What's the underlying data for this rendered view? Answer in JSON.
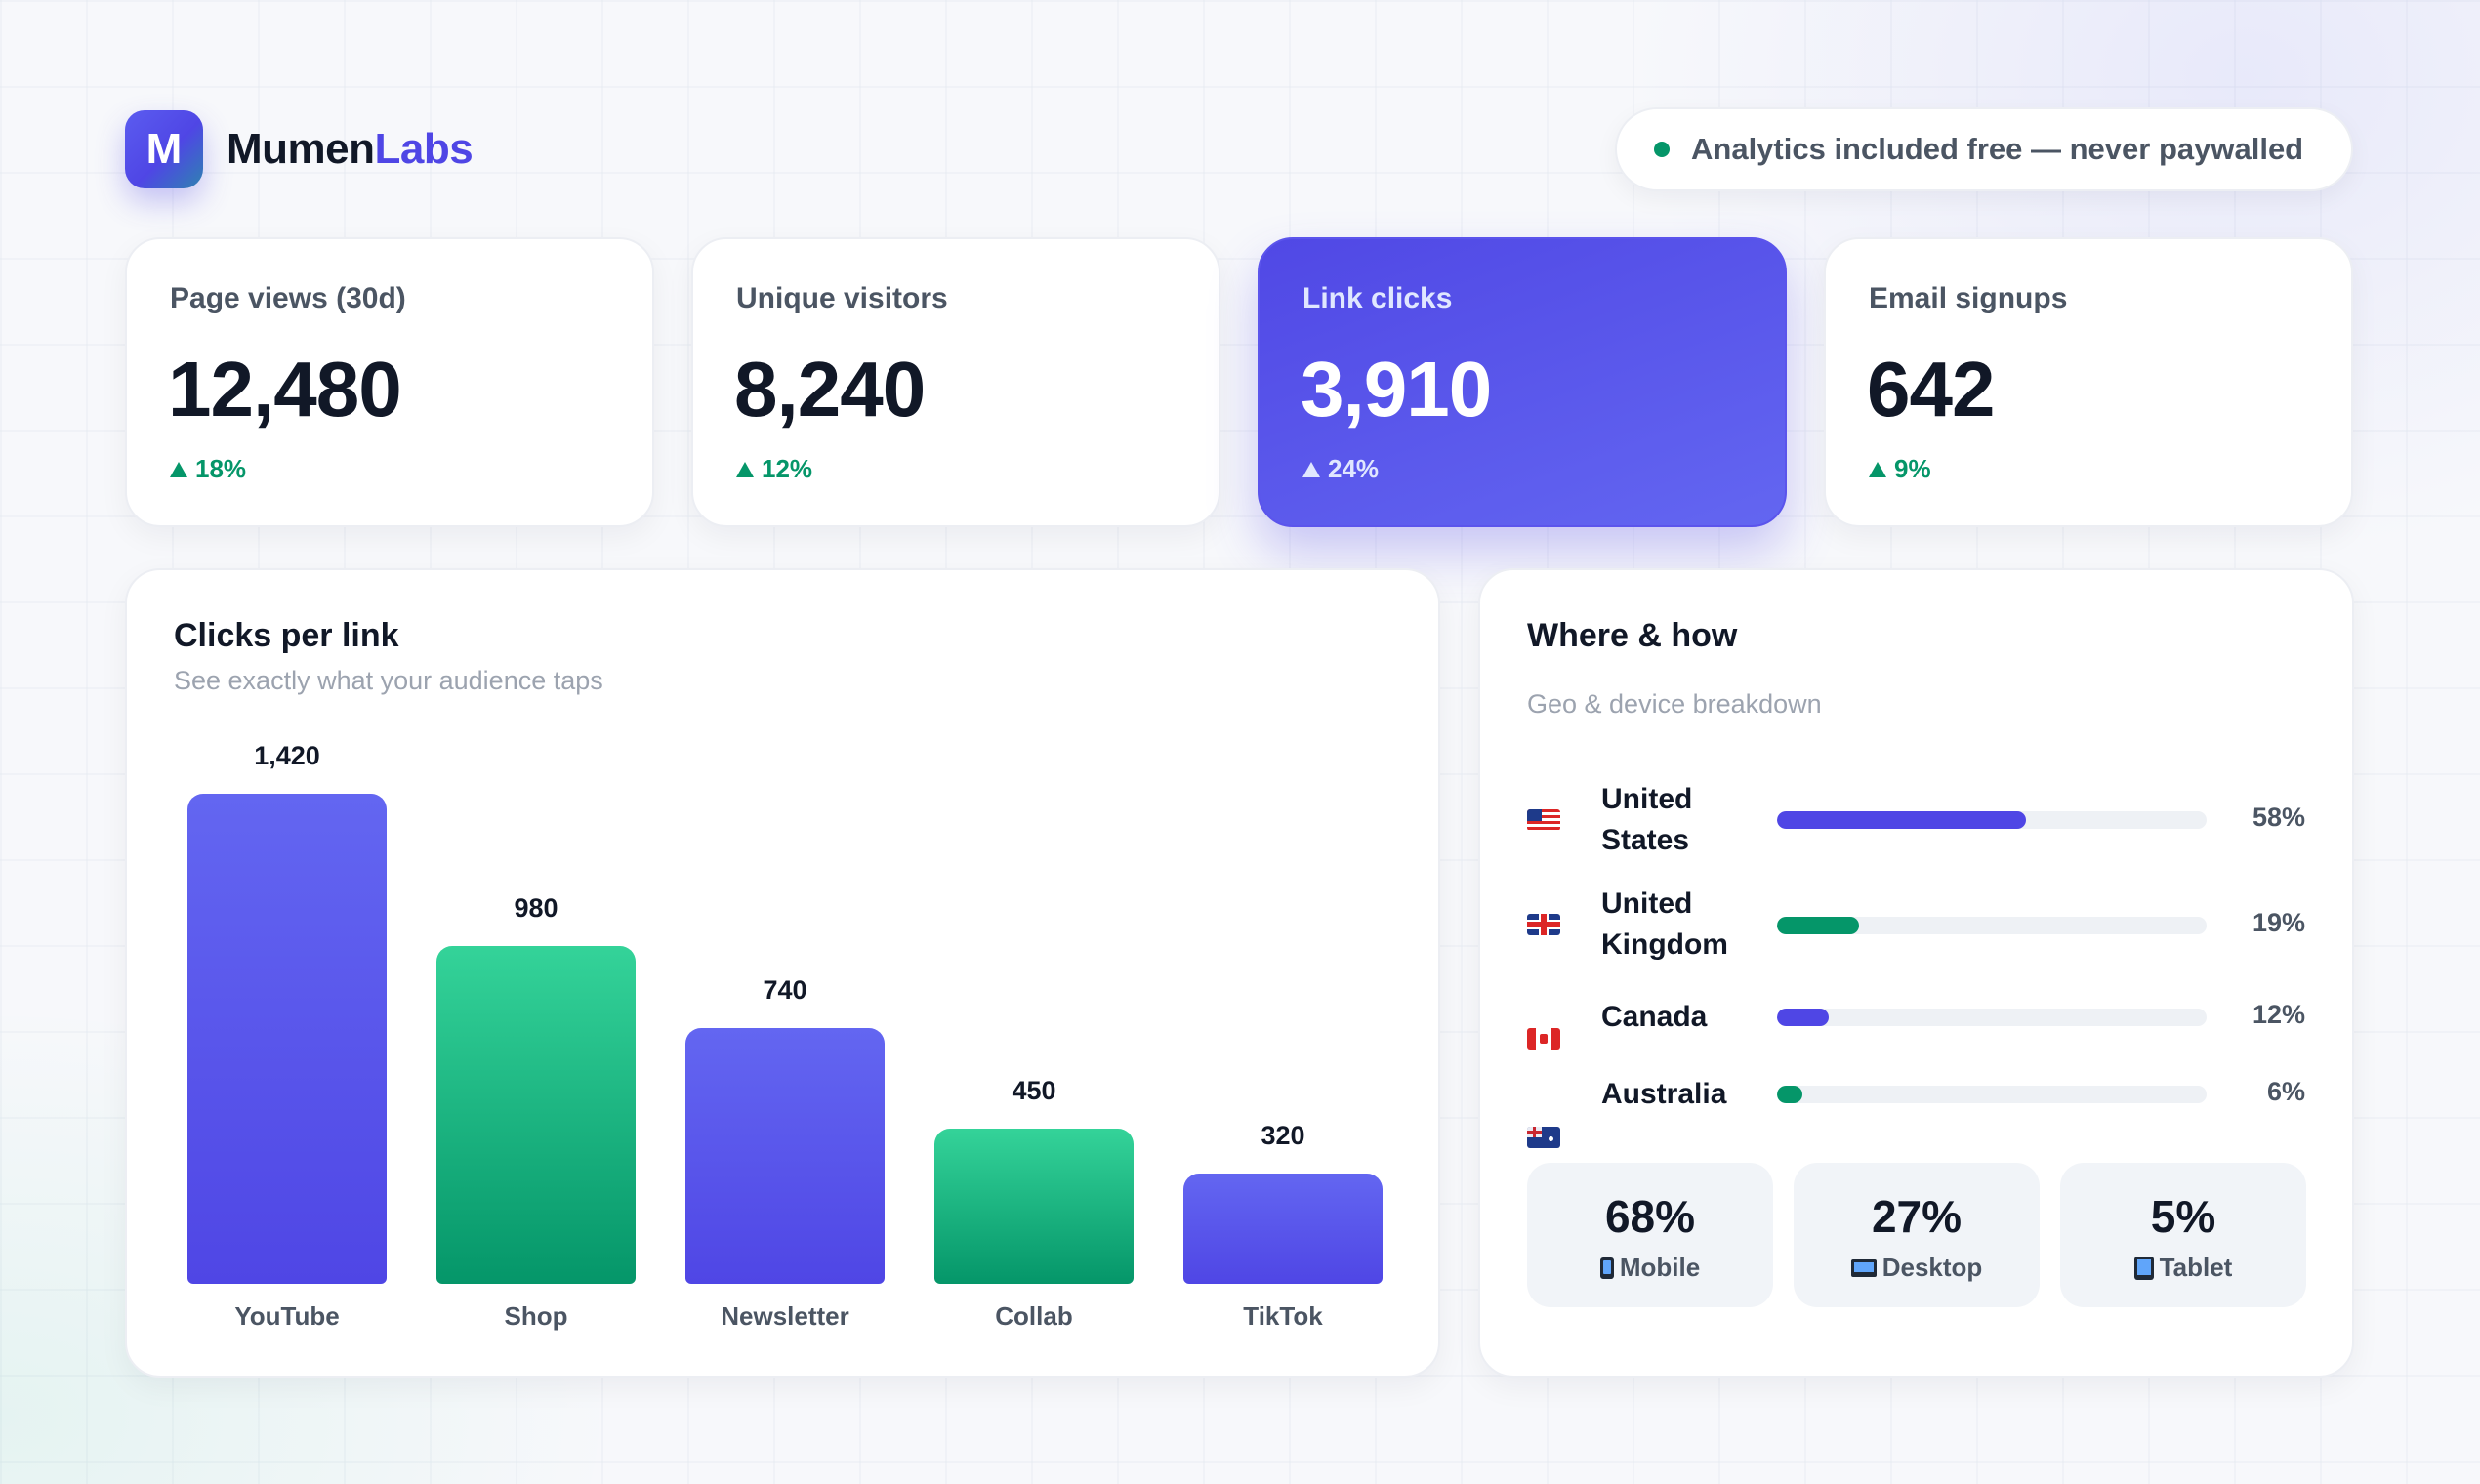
{
  "header": {
    "logo_letter": "M",
    "brand_part1": "Mumen",
    "brand_part2": "Labs",
    "badge_text": "Analytics included free — never paywalled",
    "badge_dot_color": "#059669"
  },
  "stats": [
    {
      "label": "Page views (30d)",
      "value": "12,480",
      "change": "18%",
      "highlighted": false
    },
    {
      "label": "Unique visitors",
      "value": "8,240",
      "change": "12%",
      "highlighted": false
    },
    {
      "label": "Link clicks",
      "value": "3,910",
      "change": "24%",
      "highlighted": true
    },
    {
      "label": "Email signups",
      "value": "642",
      "change": "9%",
      "highlighted": false
    }
  ],
  "clicks_panel": {
    "title": "Clicks per link",
    "subtitle": "See exactly what your audience taps"
  },
  "chart_data": {
    "type": "bar",
    "title": "Clicks per link",
    "subtitle": "See exactly what your audience taps",
    "categories": [
      "YouTube",
      "Shop",
      "Newsletter",
      "Collab",
      "TikTok"
    ],
    "values": [
      1420,
      980,
      740,
      450,
      320
    ],
    "value_labels": [
      "1,420",
      "980",
      "740",
      "450",
      "320"
    ],
    "bar_colors": [
      "#4f46e5",
      "#059669",
      "#4f46e5",
      "#059669",
      "#4f46e5"
    ],
    "ylim": [
      0,
      1420
    ],
    "grid": false,
    "legend": "none",
    "xlabel": "",
    "ylabel": ""
  },
  "geo_panel": {
    "title": "Where & how",
    "subtitle": "Geo & device breakdown",
    "countries": [
      {
        "name": "United States",
        "flag_icon": "us-flag-icon",
        "percent": 58,
        "percent_label": "58%",
        "color": "#4f46e5"
      },
      {
        "name": "United Kingdom",
        "flag_icon": "uk-flag-icon",
        "percent": 19,
        "percent_label": "19%",
        "color": "#059669"
      },
      {
        "name": "Canada",
        "flag_icon": "ca-flag-icon",
        "percent": 12,
        "percent_label": "12%",
        "color": "#4f46e5"
      },
      {
        "name": "Australia",
        "flag_icon": "au-flag-icon",
        "percent": 6,
        "percent_label": "6%",
        "color": "#059669"
      }
    ],
    "devices": [
      {
        "value": "68%",
        "label": "Mobile",
        "icon": "mobile-phone-icon"
      },
      {
        "value": "27%",
        "label": "Desktop",
        "icon": "laptop-icon"
      },
      {
        "value": "5%",
        "label": "Tablet",
        "icon": "tablet-icon"
      }
    ]
  },
  "colors": {
    "accent": "#4f46e5",
    "positive": "#059669",
    "text_primary": "#111827",
    "text_secondary": "#4b5563"
  }
}
